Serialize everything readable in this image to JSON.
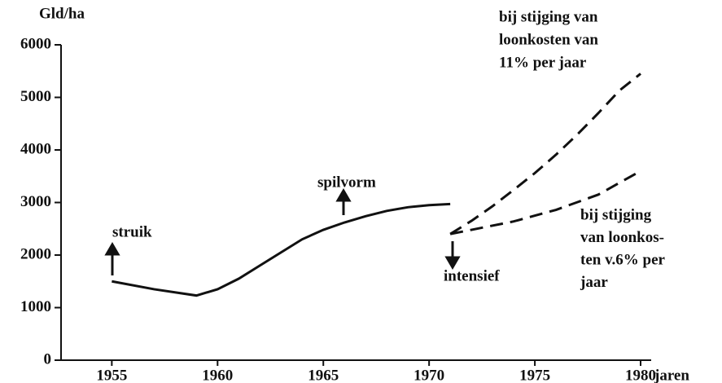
{
  "chart_data": {
    "type": "line",
    "y_label": "Gld/ha",
    "x_label": "jaren",
    "xlim": [
      1952.6,
      1980.5
    ],
    "ylim": [
      0,
      6000
    ],
    "xticks": [
      1955,
      1960,
      1965,
      1970,
      1975,
      1980
    ],
    "yticks": [
      0,
      1000,
      2000,
      3000,
      4000,
      5000,
      6000
    ],
    "series": [
      {
        "color": "#111111",
        "style": "solid",
        "x": [
          1955,
          1957,
          1959,
          1960,
          1961,
          1962,
          1963,
          1964,
          1965,
          1966,
          1967,
          1968,
          1969,
          1970,
          1971
        ],
        "values": [
          1500,
          1350,
          1230,
          1350,
          1550,
          1800,
          2050,
          2300,
          2480,
          2620,
          2740,
          2840,
          2910,
          2950,
          2970
        ]
      },
      {
        "color": "#111111",
        "style": "dashed",
        "x": [
          1971,
          1972,
          1973,
          1974,
          1975,
          1976,
          1977,
          1978,
          1979,
          1980
        ],
        "values": [
          2400,
          2650,
          2930,
          3240,
          3560,
          3910,
          4290,
          4700,
          5130,
          5450
        ]
      },
      {
        "color": "#111111",
        "style": "dashed",
        "x": [
          1971,
          1972,
          1974,
          1976,
          1978,
          1980
        ],
        "values": [
          2400,
          2480,
          2640,
          2860,
          3150,
          3600
        ]
      }
    ],
    "annotations": [
      {
        "lines": [
          "bij stijging van",
          "loonkosten van",
          "11% per jaar"
        ]
      },
      {
        "lines": [
          "bij stijging",
          "van loonkos-",
          "ten v.6% per",
          "jaar"
        ]
      },
      {
        "lines": [
          "struik"
        ]
      },
      {
        "lines": [
          "spilvorm"
        ]
      },
      {
        "lines": [
          "intensief"
        ]
      }
    ]
  }
}
